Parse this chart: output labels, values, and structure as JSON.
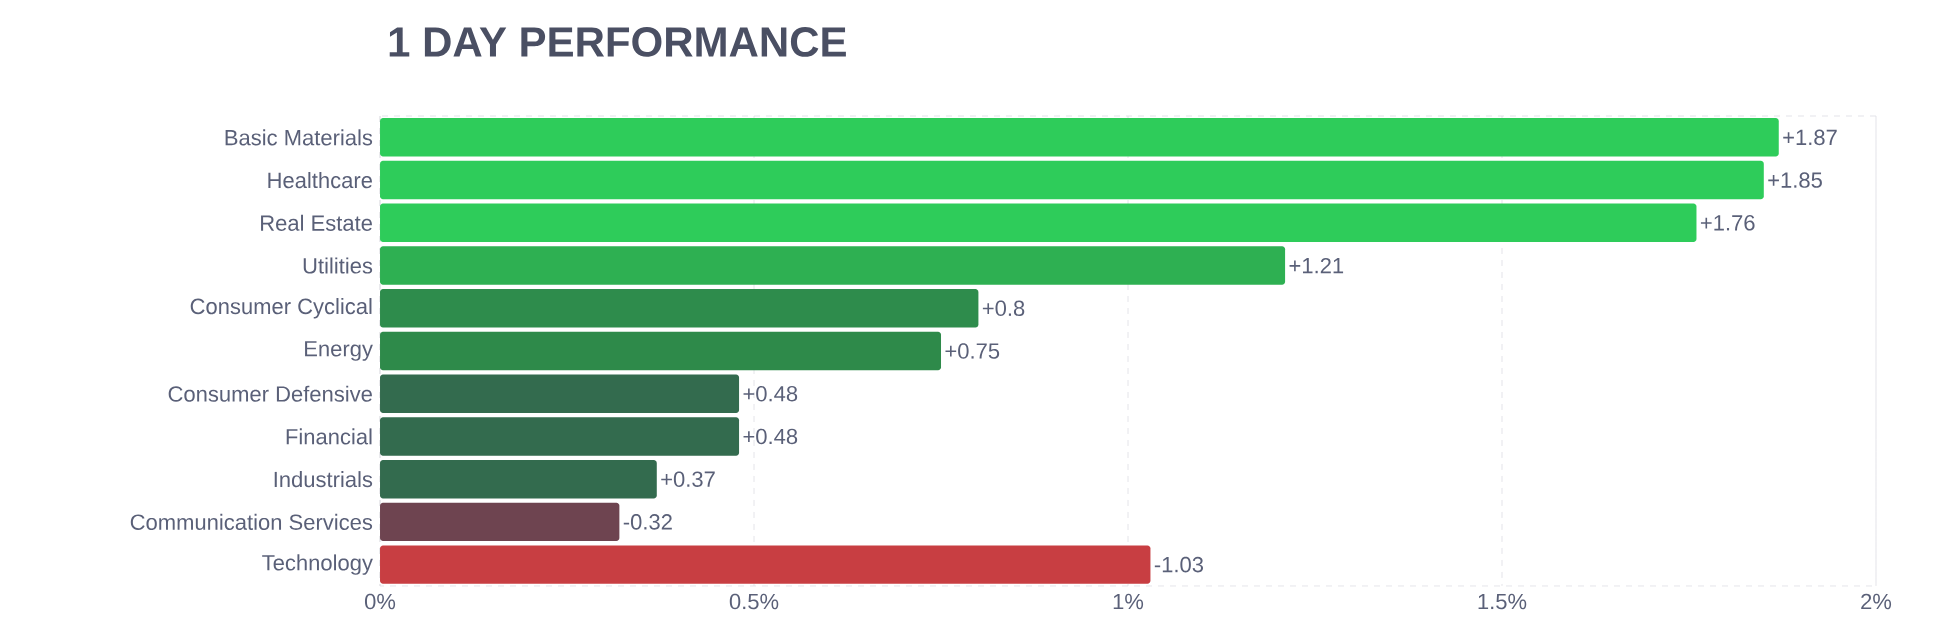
{
  "chart_data": {
    "type": "bar",
    "orientation": "horizontal",
    "title": "1 DAY PERFORMANCE",
    "categories": [
      "Basic Materials",
      "Healthcare",
      "Real Estate",
      "Utilities",
      "Consumer Cyclical",
      "Energy",
      "Consumer Defensive",
      "Financial",
      "Industrials",
      "Communication Services",
      "Technology"
    ],
    "values": [
      1.87,
      1.85,
      1.76,
      1.21,
      0.8,
      0.75,
      0.48,
      0.48,
      0.37,
      -0.32,
      -1.03
    ],
    "base": [
      0,
      0,
      0,
      0,
      0,
      0,
      0,
      0,
      0,
      0.32,
      1.03
    ],
    "value_labels": [
      "+1.87",
      "+1.85",
      "+1.76",
      "+1.21",
      "+0.8",
      "+0.75",
      "+0.48",
      "+0.48",
      "+0.37",
      "-0.32",
      "-1.03"
    ],
    "colors": [
      "#2ecc5a",
      "#2ecc5a",
      "#2ecc5a",
      "#2eb052",
      "#2e8c4c",
      "#2e8a4a",
      "#336b4e",
      "#336b4e",
      "#336b4e",
      "#6e4450",
      "#c83e42"
    ],
    "xlim": [
      0,
      2
    ],
    "xticks": [
      {
        "value": 0,
        "label": "0%"
      },
      {
        "value": 0.5,
        "label": "0.5%"
      },
      {
        "value": 1,
        "label": "1%"
      },
      {
        "value": 1.5,
        "label": "1.5%"
      },
      {
        "value": 2,
        "label": "2%"
      }
    ],
    "grid": "x"
  }
}
